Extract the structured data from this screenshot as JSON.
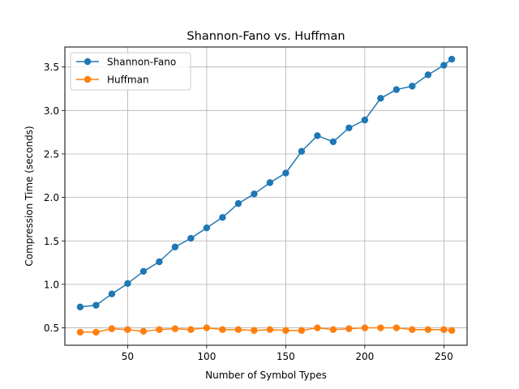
{
  "chart_data": {
    "type": "line",
    "title": "Shannon-Fano vs. Huffman",
    "xlabel": "Number of Symbol Types",
    "ylabel": "Compression Time (seconds)",
    "xlim": [
      10.3,
      264.7
    ],
    "ylim": [
      0.3,
      3.73
    ],
    "xticks": [
      50,
      100,
      150,
      200,
      250
    ],
    "xtick_labels": [
      "50",
      "100",
      "150",
      "200",
      "250"
    ],
    "yticks": [
      0.5,
      1.0,
      1.5,
      2.0,
      2.5,
      3.0,
      3.5
    ],
    "ytick_labels": [
      "0.5",
      "1.0",
      "1.5",
      "2.0",
      "2.5",
      "3.0",
      "3.5"
    ],
    "grid": true,
    "legend_position": "top-left",
    "x": [
      20,
      30,
      40,
      50,
      60,
      70,
      80,
      90,
      100,
      110,
      120,
      130,
      140,
      150,
      160,
      170,
      180,
      190,
      200,
      210,
      220,
      230,
      240,
      250,
      255
    ],
    "series": [
      {
        "name": "Shannon-Fano",
        "color": "#1f77b4",
        "values": [
          0.74,
          0.76,
          0.89,
          1.01,
          1.15,
          1.26,
          1.43,
          1.53,
          1.65,
          1.77,
          1.93,
          2.04,
          2.17,
          2.28,
          2.53,
          2.71,
          2.64,
          2.8,
          2.89,
          3.14,
          3.24,
          3.28,
          3.41,
          3.52,
          3.59
        ]
      },
      {
        "name": "Huffman",
        "color": "#ff7f0e",
        "values": [
          0.45,
          0.45,
          0.49,
          0.48,
          0.46,
          0.48,
          0.49,
          0.48,
          0.5,
          0.48,
          0.48,
          0.47,
          0.48,
          0.47,
          0.47,
          0.5,
          0.48,
          0.49,
          0.5,
          0.5,
          0.5,
          0.48,
          0.48,
          0.48,
          0.47
        ]
      }
    ]
  }
}
